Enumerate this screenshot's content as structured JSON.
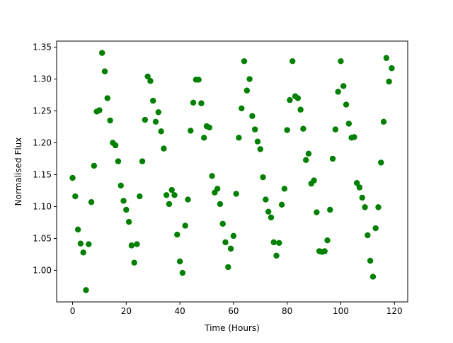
{
  "chart_data": {
    "type": "scatter",
    "xlabel": "Time (Hours)",
    "ylabel": "Normalised Flux",
    "x": [
      0,
      1,
      2,
      3,
      4,
      5,
      6,
      7,
      8,
      9,
      10,
      11,
      12,
      13,
      14,
      15,
      16,
      17,
      18,
      19,
      20,
      21,
      22,
      23,
      24,
      25,
      26,
      27,
      28,
      29,
      30,
      31,
      32,
      33,
      34,
      35,
      36,
      37,
      38,
      39,
      40,
      41,
      42,
      43,
      44,
      45,
      46,
      47,
      48,
      49,
      50,
      51,
      52,
      53,
      54,
      55,
      56,
      57,
      58,
      59,
      60,
      61,
      62,
      63,
      64,
      65,
      66,
      67,
      68,
      69,
      70,
      71,
      72,
      73,
      74,
      75,
      76,
      77,
      78,
      79,
      80,
      81,
      82,
      83,
      84,
      85,
      86,
      87,
      88,
      89,
      90,
      91,
      92,
      93,
      94,
      95,
      96,
      97,
      98,
      99,
      100,
      101,
      102,
      103,
      104,
      105,
      106,
      107,
      108,
      109,
      110,
      111,
      112,
      113,
      114,
      115,
      116,
      117,
      118,
      119
    ],
    "values": [
      1.145,
      1.116,
      1.064,
      1.042,
      1.028,
      0.969,
      1.041,
      1.107,
      1.164,
      1.249,
      1.251,
      1.341,
      1.312,
      1.27,
      1.235,
      1.2,
      1.196,
      1.171,
      1.133,
      1.109,
      1.095,
      1.076,
      1.039,
      1.012,
      1.041,
      1.116,
      1.171,
      1.236,
      1.304,
      1.297,
      1.266,
      1.233,
      1.248,
      1.218,
      1.191,
      1.118,
      1.104,
      1.126,
      1.118,
      1.056,
      1.014,
      0.996,
      1.07,
      1.111,
      1.219,
      1.263,
      1.299,
      1.299,
      1.262,
      1.208,
      1.226,
      1.224,
      1.148,
      1.122,
      1.128,
      1.104,
      1.073,
      1.044,
      1.005,
      1.034,
      1.054,
      1.12,
      1.208,
      1.254,
      1.328,
      1.282,
      1.3,
      1.242,
      1.221,
      1.202,
      1.19,
      1.146,
      1.111,
      1.092,
      1.083,
      1.044,
      1.023,
      1.043,
      1.103,
      1.128,
      1.22,
      1.267,
      1.328,
      1.273,
      1.27,
      1.252,
      1.222,
      1.173,
      1.183,
      1.136,
      1.141,
      1.091,
      1.03,
      1.029,
      1.03,
      1.047,
      1.095,
      1.175,
      1.221,
      1.28,
      1.328,
      1.289,
      1.26,
      1.23,
      1.208,
      1.209,
      1.137,
      1.13,
      1.114,
      1.099,
      1.055,
      1.015,
      0.99,
      1.066,
      1.099,
      1.169,
      1.233,
      1.333,
      1.296,
      1.317
    ],
    "color": "#008000",
    "xlim": [
      -5.95,
      124.95
    ],
    "xticks": [
      0,
      20,
      40,
      60,
      80,
      100,
      120
    ],
    "ylim": [
      0.9505,
      1.3595
    ],
    "yticks": [
      {
        "value": 1.0,
        "label": "1.00"
      },
      1.05,
      {
        "value": 1.1,
        "label": "1.10"
      },
      1.15,
      {
        "value": 1.2,
        "label": "1.20"
      },
      1.25,
      {
        "value": 1.3,
        "label": "1.30"
      },
      1.35
    ]
  }
}
